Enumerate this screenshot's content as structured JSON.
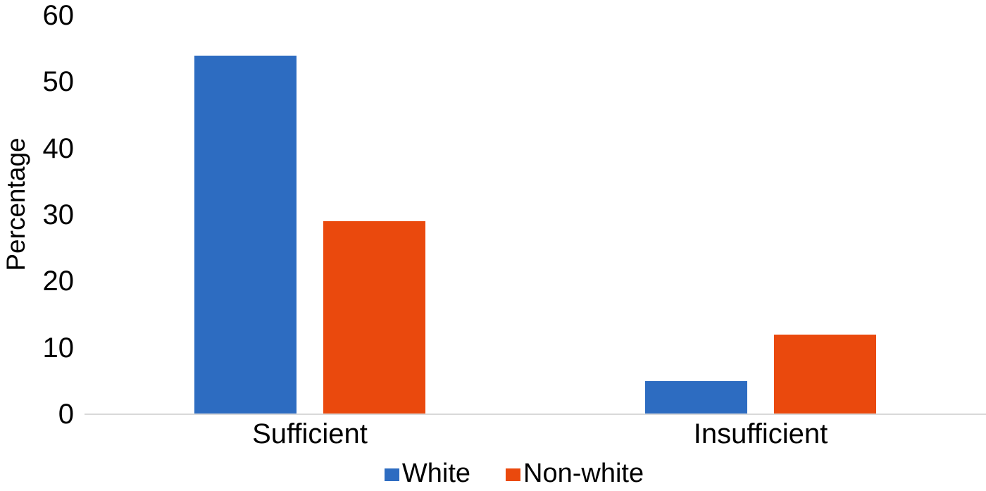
{
  "chart_data": {
    "type": "bar",
    "title": "",
    "categories": [
      "Sufficient",
      "Insufficient"
    ],
    "series": [
      {
        "name": "White",
        "color": "#2d6cc1",
        "values": [
          54,
          5
        ]
      },
      {
        "name": "Non-white",
        "color": "#ea490d",
        "values": [
          29,
          12
        ]
      }
    ],
    "xlabel": "",
    "ylabel": "Percentage",
    "ylim": [
      0,
      60
    ],
    "yticks": [
      0,
      10,
      20,
      30,
      40,
      50,
      60
    ],
    "grid": false,
    "legend_position": "bottom",
    "axis_line_color": "#d9d9d9",
    "text_color": "#000000",
    "background_color": "#ffffff"
  }
}
